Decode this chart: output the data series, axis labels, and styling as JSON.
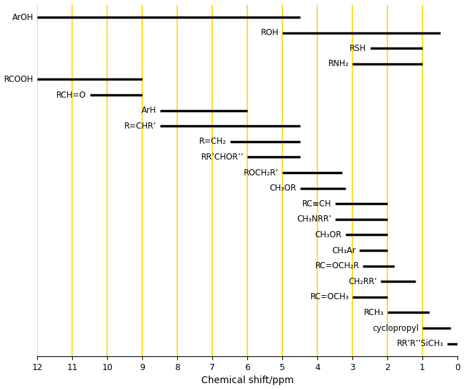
{
  "xlabel": "Chemical shift/ppm",
  "xlim_left": 12,
  "xlim_right": 0,
  "xticks": [
    0,
    1,
    2,
    3,
    4,
    5,
    6,
    7,
    8,
    9,
    10,
    11,
    12
  ],
  "grid_color": "#FFD700",
  "line_color": "#000000",
  "background_color": "#ffffff",
  "entries": [
    {
      "label": "ArOH",
      "xmin": 4.5,
      "xmax": 12.0,
      "y": 22
    },
    {
      "label": "ROH",
      "xmin": 0.5,
      "xmax": 5.0,
      "y": 21
    },
    {
      "label": "RSH",
      "xmin": 1.0,
      "xmax": 2.5,
      "y": 20
    },
    {
      "label": "RNH₂",
      "xmin": 1.0,
      "xmax": 3.0,
      "y": 19
    },
    {
      "label": "RCOOH",
      "xmin": 9.0,
      "xmax": 12.0,
      "y": 18
    },
    {
      "label": "RCH=O",
      "xmin": 9.0,
      "xmax": 10.5,
      "y": 17
    },
    {
      "label": "ArH",
      "xmin": 6.0,
      "xmax": 8.5,
      "y": 16
    },
    {
      "label": "R=CHR’",
      "xmin": 4.5,
      "xmax": 8.5,
      "y": 15
    },
    {
      "label": "R=CH₂",
      "xmin": 4.5,
      "xmax": 6.5,
      "y": 14
    },
    {
      "label": "RR’CHOR’’",
      "xmin": 4.5,
      "xmax": 6.0,
      "y": 13
    },
    {
      "label": "ROCH₂R’",
      "xmin": 3.3,
      "xmax": 5.0,
      "y": 12
    },
    {
      "label": "CH₃OR",
      "xmin": 3.2,
      "xmax": 4.5,
      "y": 11
    },
    {
      "label": "RC≡CH",
      "xmin": 2.0,
      "xmax": 3.5,
      "y": 10
    },
    {
      "label": "CH₃NRR’",
      "xmin": 2.0,
      "xmax": 3.5,
      "y": 9
    },
    {
      "label": "CH₃OR",
      "xmin": 2.0,
      "xmax": 3.2,
      "y": 8
    },
    {
      "label": "CH₃Ar",
      "xmin": 2.0,
      "xmax": 2.8,
      "y": 7
    },
    {
      "label": "RC=OCH₂R",
      "xmin": 1.8,
      "xmax": 2.7,
      "y": 6
    },
    {
      "label": "CH₂RR’",
      "xmin": 1.2,
      "xmax": 2.2,
      "y": 5
    },
    {
      "label": "RC=OCH₃",
      "xmin": 2.0,
      "xmax": 3.0,
      "y": 4
    },
    {
      "label": "RCH₃",
      "xmin": 0.8,
      "xmax": 2.0,
      "y": 3
    },
    {
      "label": "cyclopropyl",
      "xmin": 0.2,
      "xmax": 1.0,
      "y": 2
    },
    {
      "label": "RR’R’’SiCH₃",
      "xmin": 0.0,
      "xmax": 0.3,
      "y": 1
    }
  ],
  "vline_positions": [
    1,
    2,
    3,
    4,
    5,
    6,
    7,
    8,
    9,
    10,
    11,
    12
  ],
  "label_fontsize": 8.5,
  "line_width": 2.5
}
